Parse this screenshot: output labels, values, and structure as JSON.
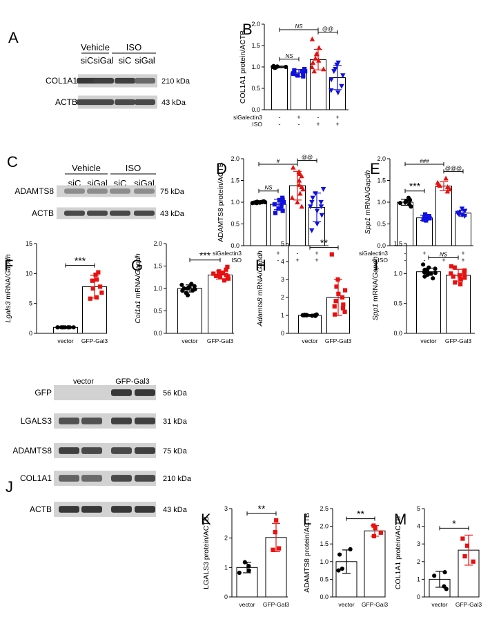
{
  "colors": {
    "black": "#000000",
    "blue": "#1010e0",
    "red": "#e81010"
  },
  "chart_data": [
    {
      "id": "B",
      "type": "bar",
      "panel_letter": "B",
      "ylabel": "COL1A1 protein/ACTB",
      "yticks": [
        "0.0",
        "0.5",
        "1.0",
        "1.5",
        "2.0"
      ],
      "ylim": [
        0,
        2.0
      ],
      "conditions": [
        {
          "name": "siGalectin3",
          "signs": [
            "-",
            "+",
            "-",
            "+"
          ]
        },
        {
          "name": "ISO",
          "signs": [
            "-",
            "-",
            "+",
            "+"
          ]
        }
      ],
      "series": [
        {
          "color": "black",
          "marker": "circle",
          "mean": 1.0,
          "sd": 0.02,
          "points": [
            1.0,
            0.98,
            1.01,
            1.0,
            0.99,
            1.02,
            1.0,
            0.98,
            1.01
          ]
        },
        {
          "color": "blue",
          "marker": "square",
          "mean": 0.86,
          "sd": 0.08,
          "points": [
            0.95,
            0.9,
            0.85,
            0.8,
            0.78,
            0.92,
            0.88,
            0.84,
            0.9
          ]
        },
        {
          "color": "red",
          "marker": "triangle-up",
          "mean": 1.17,
          "sd": 0.24,
          "points": [
            1.65,
            1.45,
            1.3,
            1.2,
            1.15,
            1.1,
            1.0,
            0.95,
            0.9,
            1.3
          ]
        },
        {
          "color": "blue",
          "marker": "triangle-down",
          "mean": 0.75,
          "sd": 0.28,
          "points": [
            1.1,
            1.05,
            0.95,
            0.8,
            0.7,
            0.55,
            0.45,
            0.4,
            0.9
          ]
        }
      ],
      "brackets": [
        {
          "from": 0,
          "to": 1,
          "label": "NS",
          "style": "italic"
        },
        {
          "from": 0,
          "to": 2,
          "label": "NS",
          "style": "italic"
        },
        {
          "from": 2,
          "to": 3,
          "label": "@@",
          "style": "normal"
        }
      ]
    },
    {
      "id": "D",
      "type": "bar",
      "panel_letter": "D",
      "ylabel": "ADAMTS8 protein/ACTB",
      "yticks": [
        "0.0",
        "0.5",
        "1.0",
        "1.5",
        "2.0"
      ],
      "ylim": [
        0,
        2.0
      ],
      "conditions": [
        {
          "name": "siGalectin3",
          "signs": [
            "-",
            "+",
            "-",
            "+"
          ]
        },
        {
          "name": "ISO",
          "signs": [
            "-",
            "-",
            "+",
            "+"
          ]
        }
      ],
      "series": [
        {
          "color": "black",
          "marker": "circle",
          "mean": 1.0,
          "sd": 0.02,
          "points": [
            1.0,
            0.98,
            1.01,
            1.0,
            0.99,
            1.02,
            1.0,
            0.99,
            1.0,
            1.01,
            0.98
          ]
        },
        {
          "color": "blue",
          "marker": "square",
          "mean": 0.95,
          "sd": 0.12,
          "points": [
            1.1,
            1.05,
            1.0,
            0.95,
            0.9,
            0.85,
            0.8,
            1.0,
            0.95,
            0.75,
            1.05
          ]
        },
        {
          "color": "red",
          "marker": "triangle-up",
          "mean": 1.38,
          "sd": 0.33,
          "points": [
            1.8,
            1.7,
            1.6,
            1.5,
            1.4,
            1.3,
            1.2,
            1.1,
            1.0,
            0.9,
            1.65,
            1.35
          ]
        },
        {
          "color": "blue",
          "marker": "triangle-down",
          "mean": 0.88,
          "sd": 0.33,
          "points": [
            1.3,
            1.2,
            1.1,
            1.0,
            0.9,
            0.8,
            0.7,
            0.5,
            0.35,
            0.9,
            1.0
          ]
        }
      ],
      "brackets": [
        {
          "from": 0,
          "to": 1,
          "label": "NS",
          "style": "italic"
        },
        {
          "from": 0,
          "to": 2,
          "label": "#",
          "style": "normal"
        },
        {
          "from": 2,
          "to": 3,
          "label": "@@",
          "style": "normal"
        }
      ]
    },
    {
      "id": "E",
      "type": "bar",
      "panel_letter": "E",
      "ylabel_italic": "Spp1",
      "ylabel_mid": " mRNA/",
      "ylabel_italic2": "Gapdh",
      "yticks": [
        "0.0",
        "0.5",
        "1.0",
        "1.5",
        "2.0"
      ],
      "ylim": [
        0,
        2.0
      ],
      "conditions": [
        {
          "name": "siGalectin3",
          "signs": [
            "-",
            "+",
            "-",
            "+"
          ]
        },
        {
          "name": "ISO",
          "signs": [
            "-",
            "-",
            "+",
            "+"
          ]
        }
      ],
      "series": [
        {
          "color": "black",
          "marker": "circle",
          "mean": 1.0,
          "sd": 0.07,
          "points": [
            1.1,
            1.05,
            1.0,
            0.98,
            0.95,
            0.9,
            1.02
          ]
        },
        {
          "color": "blue",
          "marker": "square",
          "mean": 0.64,
          "sd": 0.06,
          "points": [
            0.72,
            0.68,
            0.65,
            0.62,
            0.6,
            0.58,
            0.63
          ]
        },
        {
          "color": "red",
          "marker": "triangle-up",
          "mean": 1.37,
          "sd": 0.1,
          "points": [
            1.55,
            1.45,
            1.4,
            1.35,
            1.3,
            1.25,
            1.38
          ]
        },
        {
          "color": "blue",
          "marker": "triangle-down",
          "mean": 0.75,
          "sd": 0.07,
          "points": [
            0.85,
            0.8,
            0.75,
            0.72,
            0.7,
            0.68,
            0.76
          ]
        }
      ],
      "brackets": [
        {
          "from": 0,
          "to": 1,
          "label": "***",
          "style": "normal"
        },
        {
          "from": 0,
          "to": 2,
          "label": "###",
          "style": "normal"
        },
        {
          "from": 2,
          "to": 3,
          "label": "@@@",
          "style": "normal"
        }
      ]
    },
    {
      "id": "F",
      "type": "bar",
      "panel_letter": "F",
      "ylabel_italic": "Lgals3",
      "ylabel_mid": " mRNA/",
      "ylabel_italic2": "Gapdh",
      "yticks": [
        "0",
        "5",
        "10",
        "15"
      ],
      "ylim": [
        0,
        15
      ],
      "categories": [
        "vector",
        "GFP-Gal3"
      ],
      "series": [
        {
          "color": "black",
          "marker": "circle",
          "mean": 1.0,
          "sd": 0.05,
          "points": [
            1.0,
            1.0,
            1.0,
            1.0,
            1.0,
            1.0,
            1.0,
            1.0,
            1.0,
            1.0
          ]
        },
        {
          "color": "red",
          "marker": "square",
          "mean": 7.8,
          "sd": 1.9,
          "points": [
            10.2,
            9.8,
            9.0,
            7.8,
            7.5,
            6.8,
            6.0,
            5.8,
            8.8
          ]
        }
      ],
      "brackets": [
        {
          "from": 0,
          "to": 1,
          "label": "***",
          "style": "normal"
        }
      ]
    },
    {
      "id": "G",
      "type": "bar",
      "panel_letter": "G",
      "ylabel_italic": "Col1a1",
      "ylabel_mid": " mRNA/",
      "ylabel_italic2": "Gapdh",
      "yticks": [
        "0.0",
        "0.5",
        "1.0",
        "1.5",
        "2.0"
      ],
      "ylim": [
        0,
        2.0
      ],
      "categories": [
        "vector",
        "GFP-Gal3"
      ],
      "series": [
        {
          "color": "black",
          "marker": "circle",
          "mean": 1.0,
          "sd": 0.08,
          "points": [
            1.1,
            1.05,
            1.02,
            1.0,
            0.98,
            0.95,
            0.9,
            0.85,
            1.08,
            1.0,
            0.96,
            1.03
          ]
        },
        {
          "color": "red",
          "marker": "square",
          "mean": 1.3,
          "sd": 0.09,
          "points": [
            1.48,
            1.42,
            1.38,
            1.35,
            1.32,
            1.3,
            1.28,
            1.25,
            1.22,
            1.18,
            1.33,
            1.27
          ]
        }
      ],
      "brackets": [
        {
          "from": 0,
          "to": 1,
          "label": "***",
          "style": "normal"
        }
      ]
    },
    {
      "id": "H",
      "type": "bar",
      "panel_letter": "H",
      "ylabel_italic": "Adamts8",
      "ylabel_mid": " mRNA/",
      "ylabel_italic2": "Gapdh",
      "yticks": [
        "0",
        "1",
        "2",
        "3",
        "4",
        "5"
      ],
      "ylim": [
        0,
        5
      ],
      "categories": [
        "vector",
        "GFP-Gal3"
      ],
      "series": [
        {
          "color": "black",
          "marker": "circle",
          "mean": 1.0,
          "sd": 0.05,
          "points": [
            1.0,
            1.05,
            0.98,
            1.02,
            1.0,
            0.97,
            1.03,
            1.0,
            0.99,
            1.01
          ]
        },
        {
          "color": "red",
          "marker": "square",
          "mean": 2.0,
          "sd": 1.0,
          "points": [
            4.4,
            3.0,
            2.6,
            2.2,
            2.0,
            1.8,
            1.6,
            1.4,
            1.2,
            1.05,
            2.4,
            1.5
          ]
        }
      ],
      "brackets": [
        {
          "from": 0,
          "to": 1,
          "label": "**",
          "style": "normal"
        }
      ]
    },
    {
      "id": "I",
      "type": "bar",
      "panel_letter": "I",
      "ylabel_italic": "Spp1",
      "ylabel_mid": " mRNA/",
      "ylabel_italic2": "Gapdh",
      "yticks": [
        "0.0",
        "0.5",
        "1.0",
        "1.5"
      ],
      "ylim": [
        0,
        1.5
      ],
      "categories": [
        "vector",
        "GFP-Gal3"
      ],
      "series": [
        {
          "color": "black",
          "marker": "circle",
          "mean": 1.03,
          "sd": 0.06,
          "points": [
            1.15,
            1.1,
            1.08,
            1.05,
            1.03,
            1.02,
            1.0,
            0.98,
            0.95,
            0.92,
            1.06,
            1.01
          ]
        },
        {
          "color": "red",
          "marker": "square",
          "mean": 0.97,
          "sd": 0.1,
          "points": [
            1.12,
            1.1,
            1.05,
            1.0,
            0.98,
            0.95,
            0.9,
            0.85,
            0.82,
            1.02,
            0.93,
            0.97
          ]
        }
      ],
      "brackets": [
        {
          "from": 0,
          "to": 1,
          "label": "NS",
          "style": "italic"
        }
      ]
    },
    {
      "id": "K",
      "type": "bar",
      "panel_letter": "K",
      "ylabel": "LGALS3 protein/ACTB",
      "yticks": [
        "0",
        "1",
        "2",
        "3"
      ],
      "ylim": [
        0,
        3
      ],
      "categories": [
        "vector",
        "GFP-Gal3"
      ],
      "series": [
        {
          "color": "black",
          "marker": "circle",
          "mean": 1.0,
          "sd": 0.18,
          "points": [
            1.18,
            1.05,
            0.9,
            0.82
          ]
        },
        {
          "color": "red",
          "marker": "square",
          "mean": 2.02,
          "sd": 0.48,
          "points": [
            2.6,
            2.2,
            1.65,
            1.6
          ]
        }
      ],
      "brackets": [
        {
          "from": 0,
          "to": 1,
          "label": "**",
          "style": "normal"
        }
      ]
    },
    {
      "id": "L",
      "type": "bar",
      "panel_letter": "L",
      "ylabel": "ADAMTS8 protein/ACTB",
      "yticks": [
        "0.0",
        "0.5",
        "1.0",
        "1.5",
        "2.0",
        "2.5"
      ],
      "ylim": [
        0,
        2.5
      ],
      "categories": [
        "vector",
        "GFP-Gal3"
      ],
      "series": [
        {
          "color": "black",
          "marker": "circle",
          "mean": 1.0,
          "sd": 0.33,
          "points": [
            1.35,
            1.2,
            0.8,
            0.75
          ]
        },
        {
          "color": "red",
          "marker": "square",
          "mean": 1.87,
          "sd": 0.15,
          "points": [
            2.02,
            1.95,
            1.82,
            1.72
          ]
        }
      ],
      "brackets": [
        {
          "from": 0,
          "to": 1,
          "label": "**",
          "style": "normal"
        }
      ]
    },
    {
      "id": "M",
      "type": "bar",
      "panel_letter": "M",
      "ylabel": "COL1A1 protein/ACTB",
      "yticks": [
        "0",
        "1",
        "2",
        "3",
        "4",
        "5"
      ],
      "ylim": [
        0,
        5
      ],
      "categories": [
        "vector",
        "GFP-Gal3"
      ],
      "series": [
        {
          "color": "black",
          "marker": "circle",
          "mean": 1.0,
          "sd": 0.45,
          "points": [
            1.4,
            1.2,
            0.6,
            0.45
          ]
        },
        {
          "color": "red",
          "marker": "square",
          "mean": 2.65,
          "sd": 0.85,
          "points": [
            3.3,
            2.3,
            2.0,
            2.9
          ]
        }
      ],
      "brackets": [
        {
          "from": 0,
          "to": 1,
          "label": "*",
          "style": "normal"
        }
      ]
    }
  ],
  "blots": [
    {
      "id": "A",
      "panel_letter": "A",
      "groups": [
        "Vehicle",
        "ISO"
      ],
      "lanes": [
        "siC",
        "siGal",
        "siC",
        "siGal"
      ],
      "rows": [
        {
          "label": "COL1A1",
          "kda": "210 kDa"
        },
        {
          "label": "ACTB",
          "kda": "43 kDa"
        }
      ]
    },
    {
      "id": "C",
      "panel_letter": "C",
      "groups": [
        "Vehicle",
        "ISO"
      ],
      "lanes": [
        "siC",
        "siGal",
        "siC",
        "siGal"
      ],
      "rows": [
        {
          "label": "ADAMTS8",
          "kda": "75 kDa"
        },
        {
          "label": "ACTB",
          "kda": "43 kDa"
        }
      ]
    },
    {
      "id": "J",
      "panel_letter": "J",
      "groups": [
        "vector",
        "GFP-Gal3"
      ],
      "rows": [
        {
          "label": "GFP",
          "kda": "56 kDa"
        },
        {
          "label": "LGALS3",
          "kda": "31 kDa"
        },
        {
          "label": "ADAMTS8",
          "kda": "75 kDa"
        },
        {
          "label": "COL1A1",
          "kda": "210 kDa"
        },
        {
          "label": "ACTB",
          "kda": "43 kDa"
        }
      ]
    }
  ]
}
